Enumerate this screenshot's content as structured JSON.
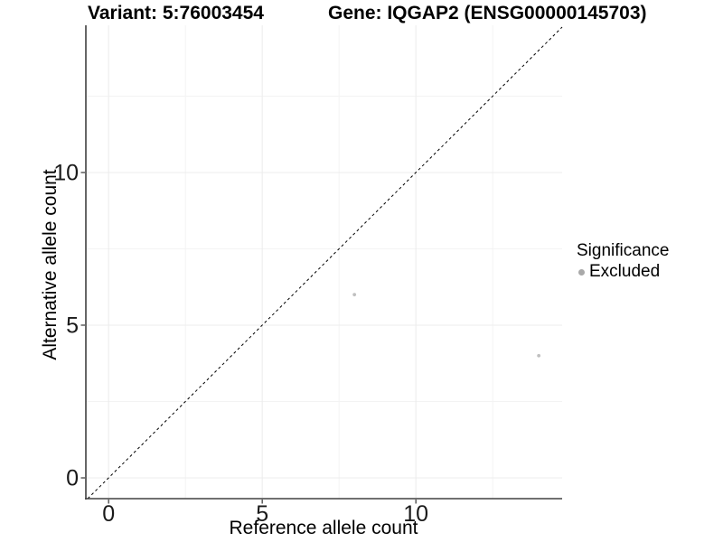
{
  "titles": {
    "variant": "Variant: 5:76003454",
    "gene": "Gene: IQGAP2 (ENSG00000145703)"
  },
  "legend": {
    "title": "Significance",
    "items": [
      {
        "label": "Excluded",
        "key_color": "#a9a9a9"
      }
    ]
  },
  "colors": {
    "point": "#c0c0c0",
    "axis_line": "#404040",
    "tick_mark": "#333333",
    "tick_label": "#1a1a1a",
    "grid_major": "#ececec",
    "grid_minor": "#f3f3f3",
    "reference_line": "#000000",
    "background": "#ffffff"
  },
  "chart_data": {
    "type": "scatter",
    "title": "Variant: 5:76003454 — Gene: IQGAP2 (ENSG00000145703)",
    "xlabel": "Reference allele count",
    "ylabel": "Alternative allele count",
    "xlim": [
      -0.74,
      14.76
    ],
    "ylim": [
      -0.68,
      14.82
    ],
    "x_ticks": [
      0,
      5,
      10
    ],
    "y_ticks": [
      0,
      5,
      10
    ],
    "x_minor_ticks": [
      2.5,
      7.5,
      12.5
    ],
    "y_minor_ticks": [
      2.5,
      7.5,
      12.5
    ],
    "grid": true,
    "legend_position": "right",
    "series": [
      {
        "name": "Excluded",
        "points": [
          {
            "x": 8,
            "y": 6
          },
          {
            "x": 14,
            "y": 4
          }
        ]
      }
    ],
    "reference_line": {
      "kind": "identity",
      "slope": 1,
      "intercept": 0,
      "style": "dashed"
    }
  }
}
